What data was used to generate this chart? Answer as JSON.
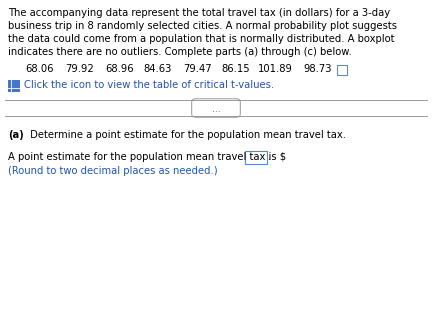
{
  "bg_color": "#ffffff",
  "text_color": "#000000",
  "blue_color": "#2255aa",
  "gray_line_color": "#aaaaaa",
  "font_family": "DejaVu Sans",
  "para1_line1": "The accompanying data represent the total travel tax (in dollars) for a 3-day",
  "para1_line2": "business trip in 8 randomly selected cities. A normal probability plot suggests",
  "para1_line3": "the data could come from a population that is normally distributed. A boxplot",
  "para1_line4": "indicates there are no outliers. Complete parts (a) through (c) below.",
  "data_values": [
    "68.06",
    "79.92",
    "68.96",
    "84.63",
    "79.47",
    "86.15",
    "101.89",
    "98.73"
  ],
  "data_x_starts": [
    25,
    65,
    105,
    143,
    183,
    221,
    258,
    303
  ],
  "click_text": "Click the icon to view the table of critical t-values.",
  "divider_text": "...",
  "part_a_bold": "(a)",
  "part_a_text": " Determine a point estimate for the population mean travel tax.",
  "answer_prefix": "A point estimate for the population mean travel tax is $",
  "answer_note": "(Round to two decimal places as needed.)",
  "font_size_main": 7.2,
  "font_size_note": 7.2
}
